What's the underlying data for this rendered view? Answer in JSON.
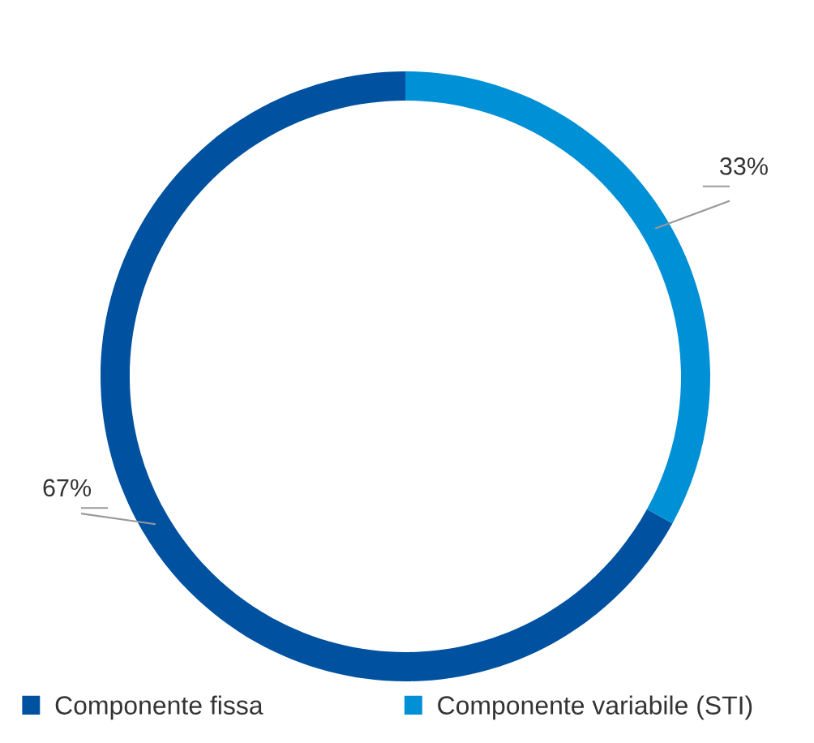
{
  "chart_data": {
    "type": "donut",
    "categories": [
      "Componente fissa",
      "Componente variabile (STI)"
    ],
    "values": [
      67,
      33
    ],
    "colors": [
      "#0052a0",
      "#0090d6"
    ],
    "value_labels": [
      "67%",
      "33%"
    ],
    "legend": "bottom"
  }
}
